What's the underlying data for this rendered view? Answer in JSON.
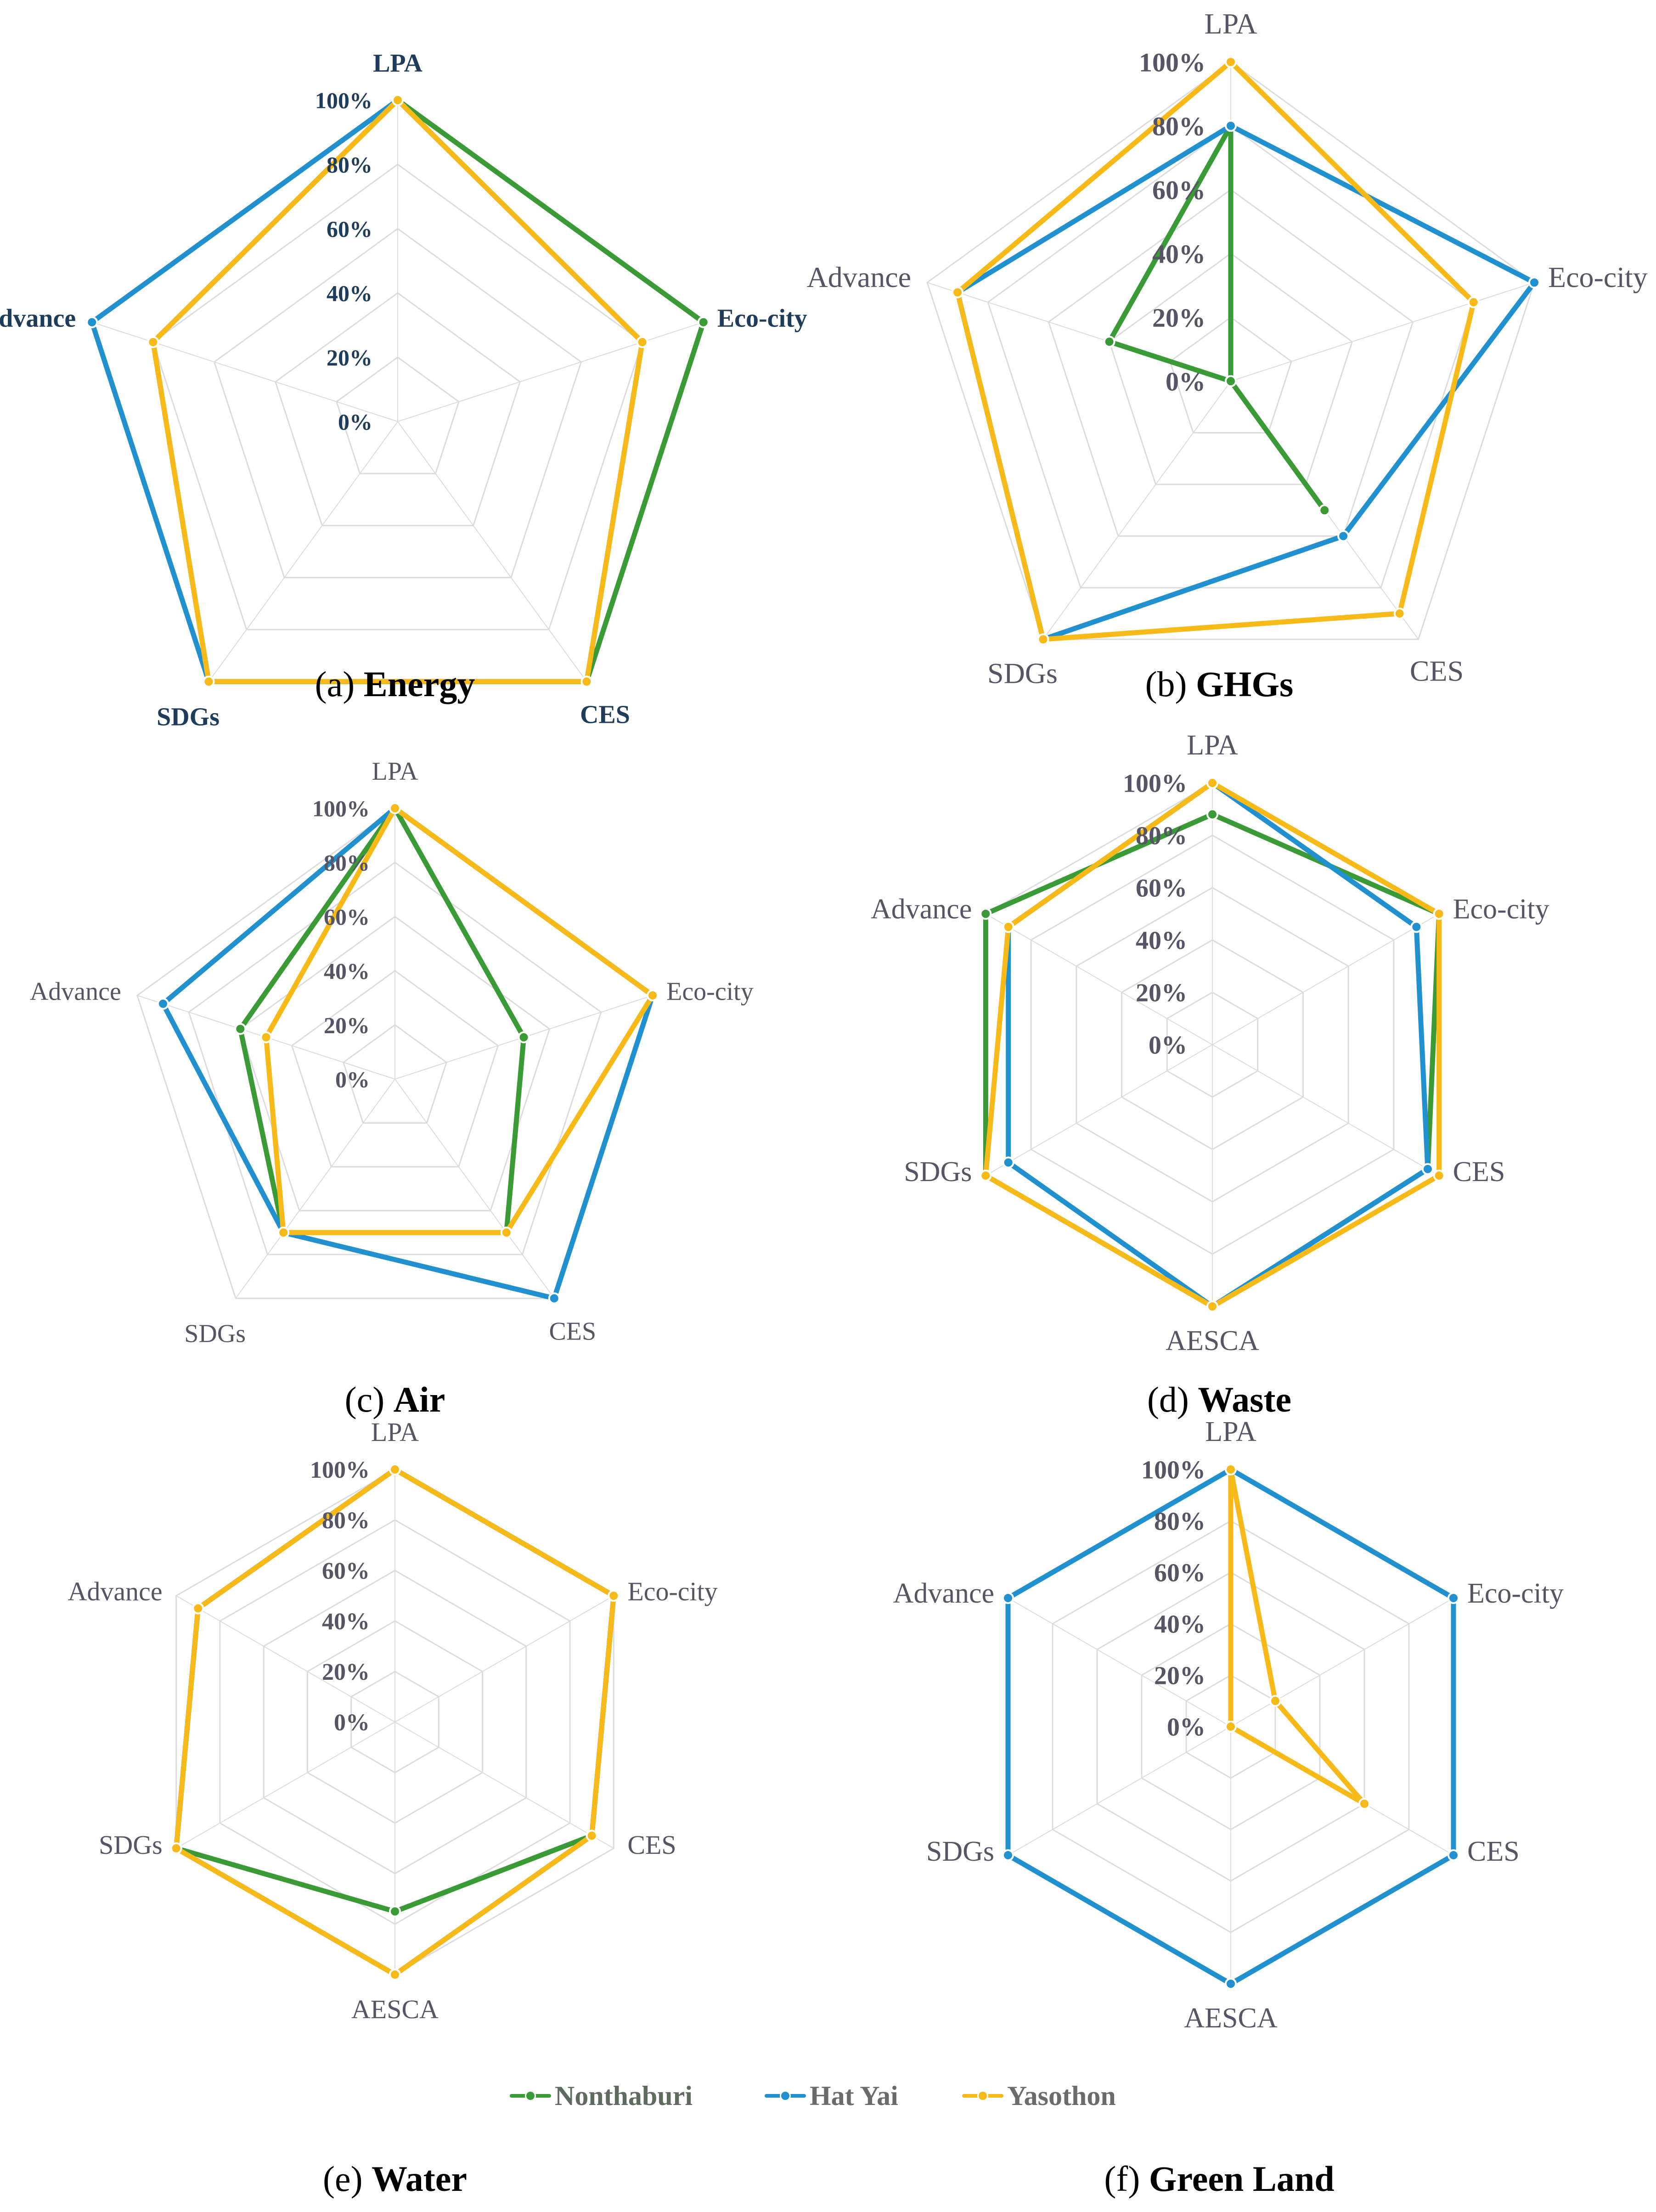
{
  "chart_data": [
    {
      "type": "radar",
      "id": "a",
      "caption_letter": "(a)",
      "caption_title": "Energy",
      "axes": [
        "LPA",
        "Eco-city",
        "CES",
        "SDGs",
        "Advance"
      ],
      "ticks": [
        "0%",
        "20%",
        "40%",
        "60%",
        "80%",
        "100%"
      ],
      "series": [
        {
          "name": "Nonthaburi",
          "values": [
            100,
            100,
            100,
            100,
            80
          ]
        },
        {
          "name": "Hat Yai",
          "values": [
            100,
            80,
            100,
            100,
            100
          ]
        },
        {
          "name": "Yasothon",
          "values": [
            100,
            80,
            100,
            100,
            80
          ]
        }
      ]
    },
    {
      "type": "radar",
      "id": "b",
      "caption_letter": "(b)",
      "caption_title": "GHGs",
      "axes": [
        "LPA",
        "Eco-city",
        "CES",
        "SDGs",
        "Advance"
      ],
      "ticks": [
        "0%",
        "20%",
        "40%",
        "60%",
        "80%",
        "100%"
      ],
      "series": [
        {
          "name": "Nonthaburi",
          "values": [
            80,
            0,
            50,
            0,
            40
          ]
        },
        {
          "name": "Hat Yai",
          "values": [
            80,
            100,
            60,
            100,
            90
          ]
        },
        {
          "name": "Yasothon",
          "values": [
            100,
            80,
            90,
            100,
            90
          ]
        }
      ]
    },
    {
      "type": "radar",
      "id": "c",
      "caption_letter": "(c)",
      "caption_title": "Air",
      "axes": [
        "LPA",
        "Eco-city",
        "CES",
        "SDGs",
        "Advance"
      ],
      "ticks": [
        "0%",
        "20%",
        "40%",
        "60%",
        "80%",
        "100%"
      ],
      "series": [
        {
          "name": "Nonthaburi",
          "values": [
            100,
            50,
            70,
            70,
            60
          ]
        },
        {
          "name": "Hat Yai",
          "values": [
            100,
            100,
            100,
            70,
            90
          ]
        },
        {
          "name": "Yasothon",
          "values": [
            100,
            100,
            70,
            70,
            50
          ]
        }
      ]
    },
    {
      "type": "radar",
      "id": "d",
      "caption_letter": "(d)",
      "caption_title": "Waste",
      "axes": [
        "LPA",
        "Eco-city",
        "CES",
        "AESCA",
        "SDGs",
        "Advance"
      ],
      "ticks": [
        "0%",
        "20%",
        "40%",
        "60%",
        "80%",
        "100%"
      ],
      "series": [
        {
          "name": "Nonthaburi",
          "values": [
            88,
            100,
            95,
            100,
            100,
            100
          ]
        },
        {
          "name": "Hat Yai",
          "values": [
            100,
            90,
            95,
            100,
            90,
            90
          ]
        },
        {
          "name": "Yasothon",
          "values": [
            100,
            100,
            100,
            100,
            100,
            90
          ]
        }
      ]
    },
    {
      "type": "radar",
      "id": "e",
      "caption_letter": "(e)",
      "caption_title": "Water",
      "axes": [
        "LPA",
        "Eco-city",
        "CES",
        "AESCA",
        "SDGs",
        "Advance"
      ],
      "ticks": [
        "0%",
        "20%",
        "40%",
        "60%",
        "80%",
        "100%"
      ],
      "series": [
        {
          "name": "Nonthaburi",
          "values": [
            100,
            100,
            90,
            75,
            100,
            90
          ]
        },
        {
          "name": "Hat Yai",
          "values": [
            100,
            100,
            90,
            100,
            100,
            90
          ]
        },
        {
          "name": "Yasothon",
          "values": [
            100,
            100,
            90,
            100,
            100,
            90
          ]
        }
      ]
    },
    {
      "type": "radar",
      "id": "f",
      "caption_letter": "(f)",
      "caption_title": "Green Land",
      "axes": [
        "LPA",
        "Eco-city",
        "CES",
        "AESCA",
        "SDGs",
        "Advance"
      ],
      "ticks": [
        "0%",
        "20%",
        "40%",
        "60%",
        "80%",
        "100%"
      ],
      "series": [
        {
          "name": "Hat Yai",
          "values": [
            100,
            100,
            100,
            100,
            100,
            100
          ]
        },
        {
          "name": "Yasothon",
          "values": [
            100,
            20,
            60,
            0,
            0,
            0
          ]
        }
      ]
    }
  ],
  "legend": [
    {
      "name": "Nonthaburi",
      "color": "#3a9a35"
    },
    {
      "name": "Hat Yai",
      "color": "#2190cf"
    },
    {
      "name": "Yasothon",
      "color": "#f7b917"
    }
  ],
  "colors": {
    "Nonthaburi": "#3a9a35",
    "Hat Yai": "#2190cf",
    "Yasothon": "#f7b917",
    "grid": "#dcdcdc",
    "label_dark": "#1f3d5a",
    "label_light": "#555566"
  }
}
